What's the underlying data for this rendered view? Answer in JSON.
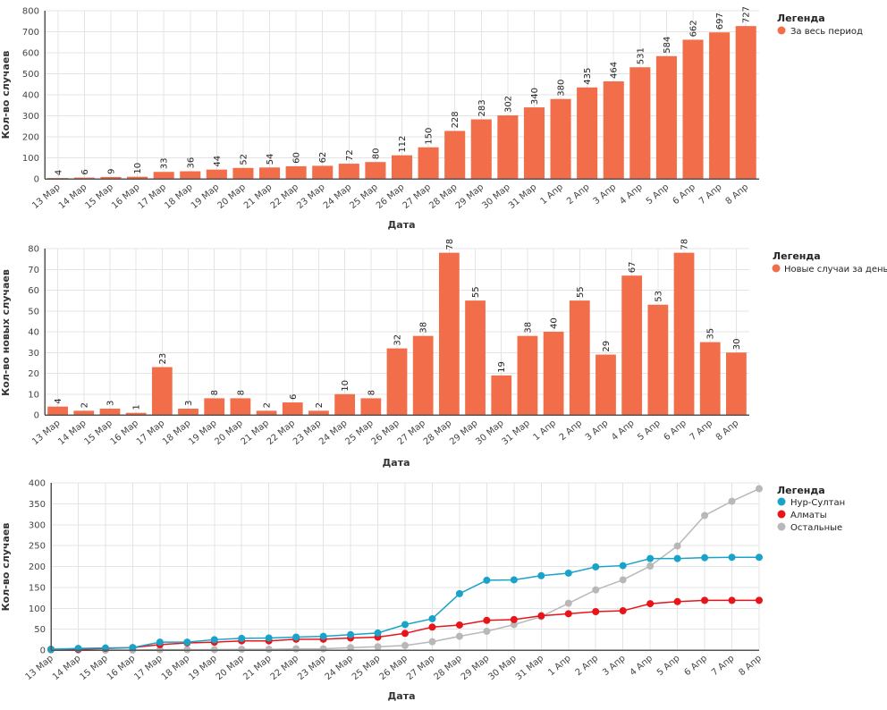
{
  "chart_data": [
    {
      "type": "bar",
      "xlabel": "Дата",
      "ylabel": "Кол-во случаев",
      "ylim": [
        0,
        800
      ],
      "yticks": [
        0,
        100,
        200,
        300,
        400,
        500,
        600,
        700,
        800
      ],
      "grid": true,
      "legend_title": "Легенда",
      "legend_position": "right",
      "categories": [
        "13 Мар",
        "14 Мар",
        "15 Мар",
        "16 Мар",
        "17 Мар",
        "18 Мар",
        "19 Мар",
        "20 Мар",
        "21 Мар",
        "22 Мар",
        "23 Мар",
        "24 Мар",
        "25 Мар",
        "26 Мар",
        "27 Мар",
        "28 Мар",
        "29 Мар",
        "30 Мар",
        "31 Мар",
        "1 Апр",
        "2 Апр",
        "3 Апр",
        "4 Апр",
        "5 Апр",
        "6 Апр",
        "7 Апр",
        "8 Апр"
      ],
      "series": [
        {
          "name": "За весь период",
          "color": "#f26d4a",
          "values": [
            4,
            6,
            9,
            10,
            33,
            36,
            44,
            52,
            54,
            60,
            62,
            72,
            80,
            112,
            150,
            228,
            283,
            302,
            340,
            380,
            435,
            464,
            531,
            584,
            662,
            697,
            727
          ]
        }
      ]
    },
    {
      "type": "bar",
      "xlabel": "Дата",
      "ylabel": "Кол-во новых случаев",
      "ylim": [
        0,
        80
      ],
      "yticks": [
        0,
        10,
        20,
        30,
        40,
        50,
        60,
        70,
        80
      ],
      "grid": true,
      "legend_title": "Легенда",
      "legend_position": "right",
      "categories": [
        "13 Мар",
        "14 Мар",
        "15 Мар",
        "16 Мар",
        "17 Мар",
        "18 Мар",
        "19 Мар",
        "20 Мар",
        "21 Мар",
        "22 Мар",
        "23 Мар",
        "24 Мар",
        "25 Мар",
        "26 Мар",
        "27 Мар",
        "28 Мар",
        "29 Мар",
        "30 Мар",
        "31 Мар",
        "1 Апр",
        "2 Апр",
        "3 Апр",
        "4 Апр",
        "5 Апр",
        "6 Апр",
        "7 Апр",
        "8 Апр"
      ],
      "series": [
        {
          "name": "Новые случаи за день",
          "color": "#f26d4a",
          "values": [
            4,
            2,
            3,
            1,
            23,
            3,
            8,
            8,
            2,
            6,
            2,
            10,
            8,
            32,
            38,
            78,
            55,
            19,
            38,
            40,
            55,
            29,
            67,
            53,
            78,
            35,
            30
          ]
        }
      ]
    },
    {
      "type": "line",
      "xlabel": "Дата",
      "ylabel": "Кол-во случаев",
      "ylim": [
        0,
        400
      ],
      "yticks": [
        0,
        50,
        100,
        150,
        200,
        250,
        300,
        350,
        400
      ],
      "grid": true,
      "legend_title": "Легенда",
      "legend_position": "right",
      "categories": [
        "13 Мар",
        "14 Мар",
        "15 Мар",
        "16 Мар",
        "17 Мар",
        "18 Мар",
        "19 Мар",
        "20 Мар",
        "21 Мар",
        "22 Мар",
        "23 Мар",
        "24 Мар",
        "25 Мар",
        "26 Мар",
        "27 Мар",
        "28 Мар",
        "29 Мар",
        "30 Мар",
        "31 Мар",
        "1 Апр",
        "2 Апр",
        "3 Апр",
        "4 Апр",
        "5 Апр",
        "6 Апр",
        "7 Апр",
        "8 Апр"
      ],
      "series": [
        {
          "name": "Нур-Султан",
          "color": "#1aa3c8",
          "values": [
            2,
            4,
            5,
            6,
            19,
            19,
            25,
            28,
            29,
            31,
            33,
            37,
            41,
            61,
            75,
            135,
            167,
            168,
            178,
            184,
            199,
            202,
            219,
            219,
            221,
            222,
            222
          ]
        },
        {
          "name": "Алматы",
          "color": "#e8141a",
          "values": [
            2,
            2,
            4,
            6,
            13,
            17,
            19,
            22,
            22,
            26,
            26,
            29,
            31,
            40,
            55,
            60,
            71,
            73,
            82,
            87,
            92,
            94,
            111,
            116,
            119,
            119,
            119
          ]
        },
        {
          "name": "Остальные",
          "color": "#b8b8b8",
          "values": [
            0,
            0,
            0,
            0,
            1,
            1,
            1,
            2,
            2,
            3,
            3,
            6,
            8,
            11,
            20,
            33,
            45,
            61,
            80,
            112,
            144,
            168,
            201,
            249,
            322,
            356,
            386
          ]
        }
      ]
    }
  ]
}
